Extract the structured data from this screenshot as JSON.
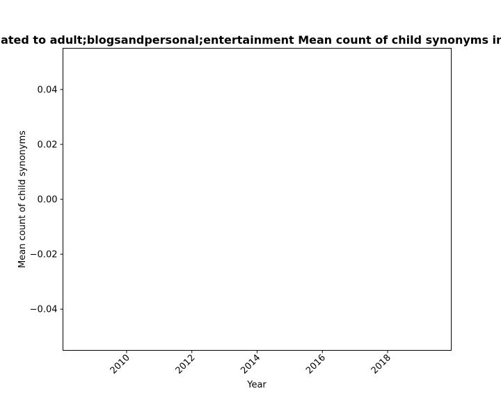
{
  "chart_data": {
    "type": "line",
    "title": "lated to adult;blogsandpersonal;entertainment Mean count of child synonyms in",
    "xlabel": "Year",
    "ylabel": "Mean count of child synonyms",
    "xlim": [
      2008.05,
      2019.95
    ],
    "ylim": [
      -0.055,
      0.055
    ],
    "x_ticks": [
      "2010",
      "2012",
      "2014",
      "2016",
      "2018"
    ],
    "y_ticks": [
      "0.04",
      "0.02",
      "0.00",
      "−0.02",
      "−0.04"
    ],
    "series": [],
    "grid": false,
    "legend": "none"
  }
}
